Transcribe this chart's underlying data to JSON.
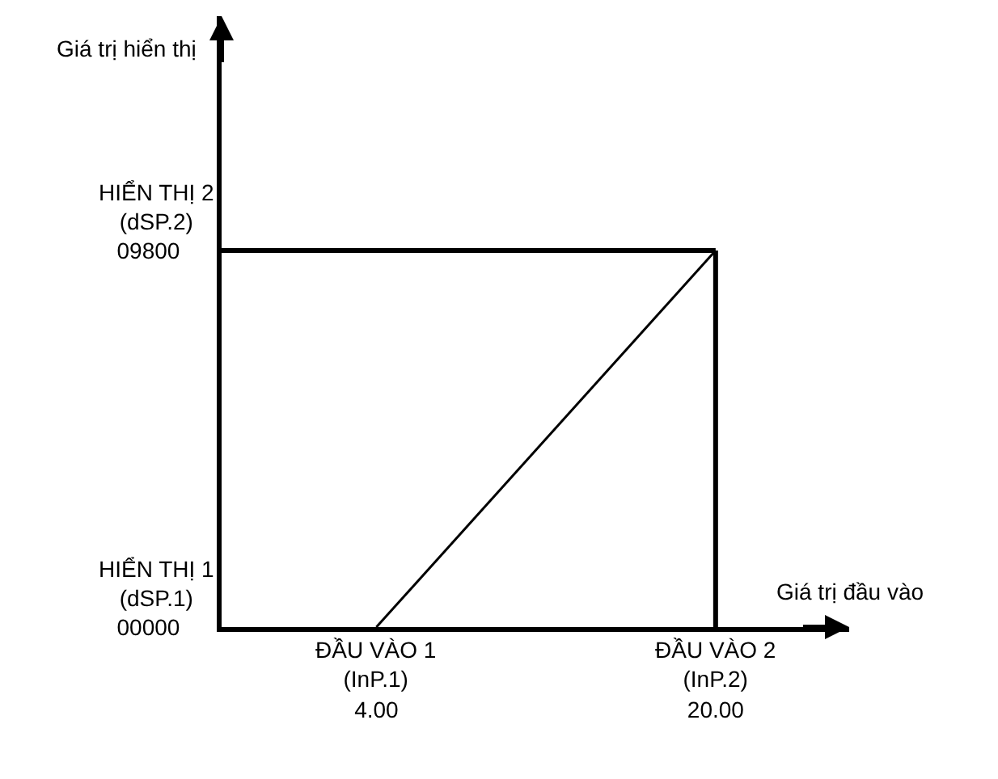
{
  "chart_data": {
    "type": "line",
    "xlabel": "Giá trị đầu vào",
    "ylabel": "Giá trị hiển thị",
    "x": [
      4,
      20
    ],
    "series": [
      {
        "color": "#000000",
        "values": [
          0,
          9800
        ]
      }
    ],
    "xlim": [
      -3.3,
      26.3
    ],
    "ylim": [
      0,
      15900
    ],
    "xticks": [
      {
        "value": 4,
        "label": "4.00"
      },
      {
        "value": 20,
        "label": "20.00"
      }
    ],
    "yticks": [
      {
        "value": 0,
        "label": "00000"
      },
      {
        "value": 9800,
        "label": "09800"
      }
    ],
    "annotations": [
      {
        "text": "ĐẦU VÀO 1\n(InP.1)",
        "x": 4,
        "y": 0
      },
      {
        "text": "ĐẦU VÀO 2\n(InP.2)",
        "x": 20,
        "y": 0
      },
      "HIỂN THỊ 1\n(dSP.1)",
      "HIỂN THỊ 2\n(dSP.2)"
    ],
    "ref_lines": [
      {
        "axis": "y",
        "value": 9800,
        "color": "#000000"
      },
      {
        "axis": "x",
        "value": 20,
        "color": "#000000"
      }
    ],
    "marker": "none",
    "line_style": "solid",
    "grid": false
  }
}
